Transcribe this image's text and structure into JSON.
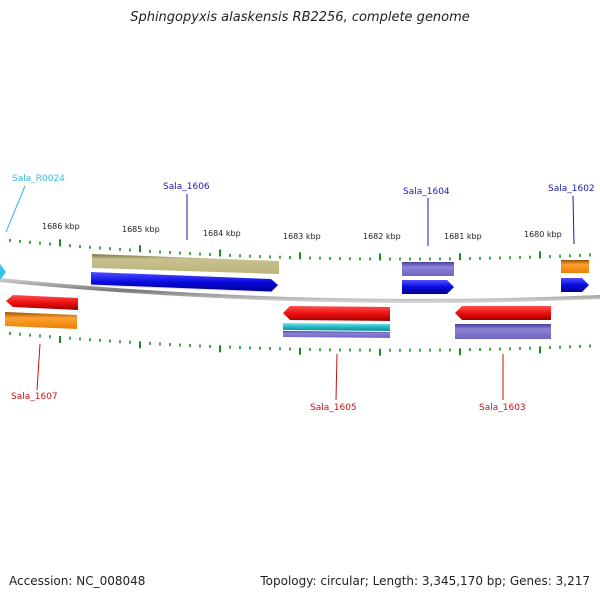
{
  "title": "Sphingopyxis alaskensis RB2256, complete genome",
  "footer": {
    "accession": "Accession: NC_008048",
    "info": "Topology: circular; Length: 3,345,170 bp; Genes: 3,217"
  },
  "colors": {
    "backbone": "#8a8a8a",
    "tick": "#1f8a1f",
    "label_blue": "#1a1aa8",
    "label_red": "#cc1111",
    "label_cyan": "#33bbdd",
    "cds_blue": "#1010e0",
    "cds_red": "#e81010",
    "olive": "#c2bb82",
    "purple": "#7d73c8",
    "orange": "#f08c10",
    "teal": "#2ac0c8"
  },
  "scale": {
    "tick_labels": [
      "1686 kbp",
      "1685 kbp",
      "1684 kbp",
      "1683 kbp",
      "1682 kbp",
      "1681 kbp",
      "1680 kbp"
    ]
  },
  "gene_labels": [
    {
      "id": "Sala_R0024",
      "text": "Sala_R0024",
      "strand": "plus",
      "color": "cyan"
    },
    {
      "id": "Sala_1606",
      "text": "Sala_1606",
      "strand": "plus",
      "color": "blue"
    },
    {
      "id": "Sala_1604",
      "text": "Sala_1604",
      "strand": "plus",
      "color": "blue"
    },
    {
      "id": "Sala_1602",
      "text": "Sala_1602",
      "strand": "plus",
      "color": "blue"
    },
    {
      "id": "Sala_1607",
      "text": "Sala_1607",
      "strand": "minus",
      "color": "red"
    },
    {
      "id": "Sala_1605",
      "text": "Sala_1605",
      "strand": "minus",
      "color": "red"
    },
    {
      "id": "Sala_1603",
      "text": "Sala_1603",
      "strand": "minus",
      "color": "red"
    }
  ]
}
